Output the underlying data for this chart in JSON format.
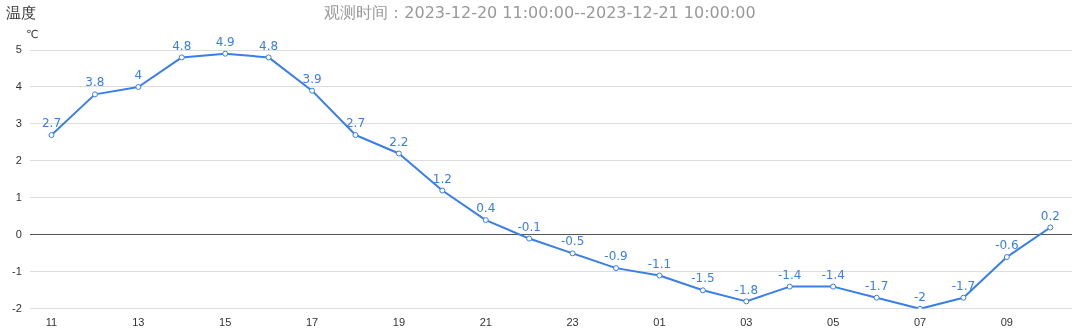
{
  "chart_data": {
    "type": "line",
    "title": "温度",
    "subtitle": "观测时间：2023-12-20 11:00:00--2023-12-21 10:00:00",
    "ylabel": "℃",
    "categories": [
      "11",
      null,
      "13",
      null,
      "15",
      null,
      "17",
      null,
      "19",
      null,
      "21",
      null,
      "23",
      null,
      "01",
      null,
      "03",
      null,
      "05",
      null,
      "07",
      null,
      "09",
      null
    ],
    "series": [
      {
        "color": "#3a7ee8",
        "values": [
          2.7,
          3.8,
          4,
          4.8,
          4.9,
          4.8,
          3.9,
          2.7,
          2.2,
          1.2,
          0.4,
          -0.1,
          -0.5,
          -0.9,
          -1.1,
          -1.5,
          -1.8,
          -1.4,
          -1.4,
          -1.7,
          -2,
          -1.7,
          -0.6,
          0.2
        ]
      }
    ],
    "ylim": [
      -2,
      5
    ],
    "yticks": [
      -2,
      -1,
      0,
      1,
      2,
      3,
      4,
      5
    ],
    "grid": "y",
    "legend": false,
    "marker": "circle",
    "line_style": "solid",
    "data_labels": true
  }
}
